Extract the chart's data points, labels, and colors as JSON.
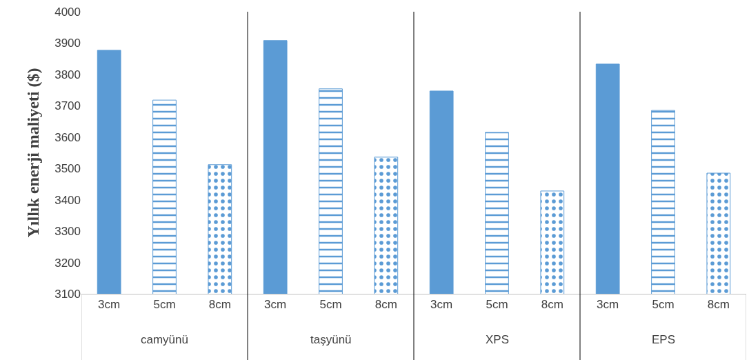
{
  "chart_data": {
    "type": "bar",
    "ylabel": "Yıllık enerji maliyeti ($)",
    "categories": [
      "3cm",
      "5cm",
      "8cm",
      "3cm",
      "5cm",
      "8cm",
      "3cm",
      "5cm",
      "8cm",
      "3cm",
      "5cm",
      "8cm"
    ],
    "values": [
      3877,
      3718,
      3512,
      3908,
      3754,
      3536,
      3747,
      3615,
      3428,
      3833,
      3685,
      3485
    ],
    "color": "#5b9bd5",
    "annotations": [
      "camyünü",
      "taşyünü",
      "XPS",
      "EPS"
    ],
    "ylim": [
      3100,
      4000
    ],
    "yticks": [
      3100,
      3200,
      3300,
      3400,
      3500,
      3600,
      3700,
      3800,
      3900,
      4000
    ],
    "grid": false
  }
}
